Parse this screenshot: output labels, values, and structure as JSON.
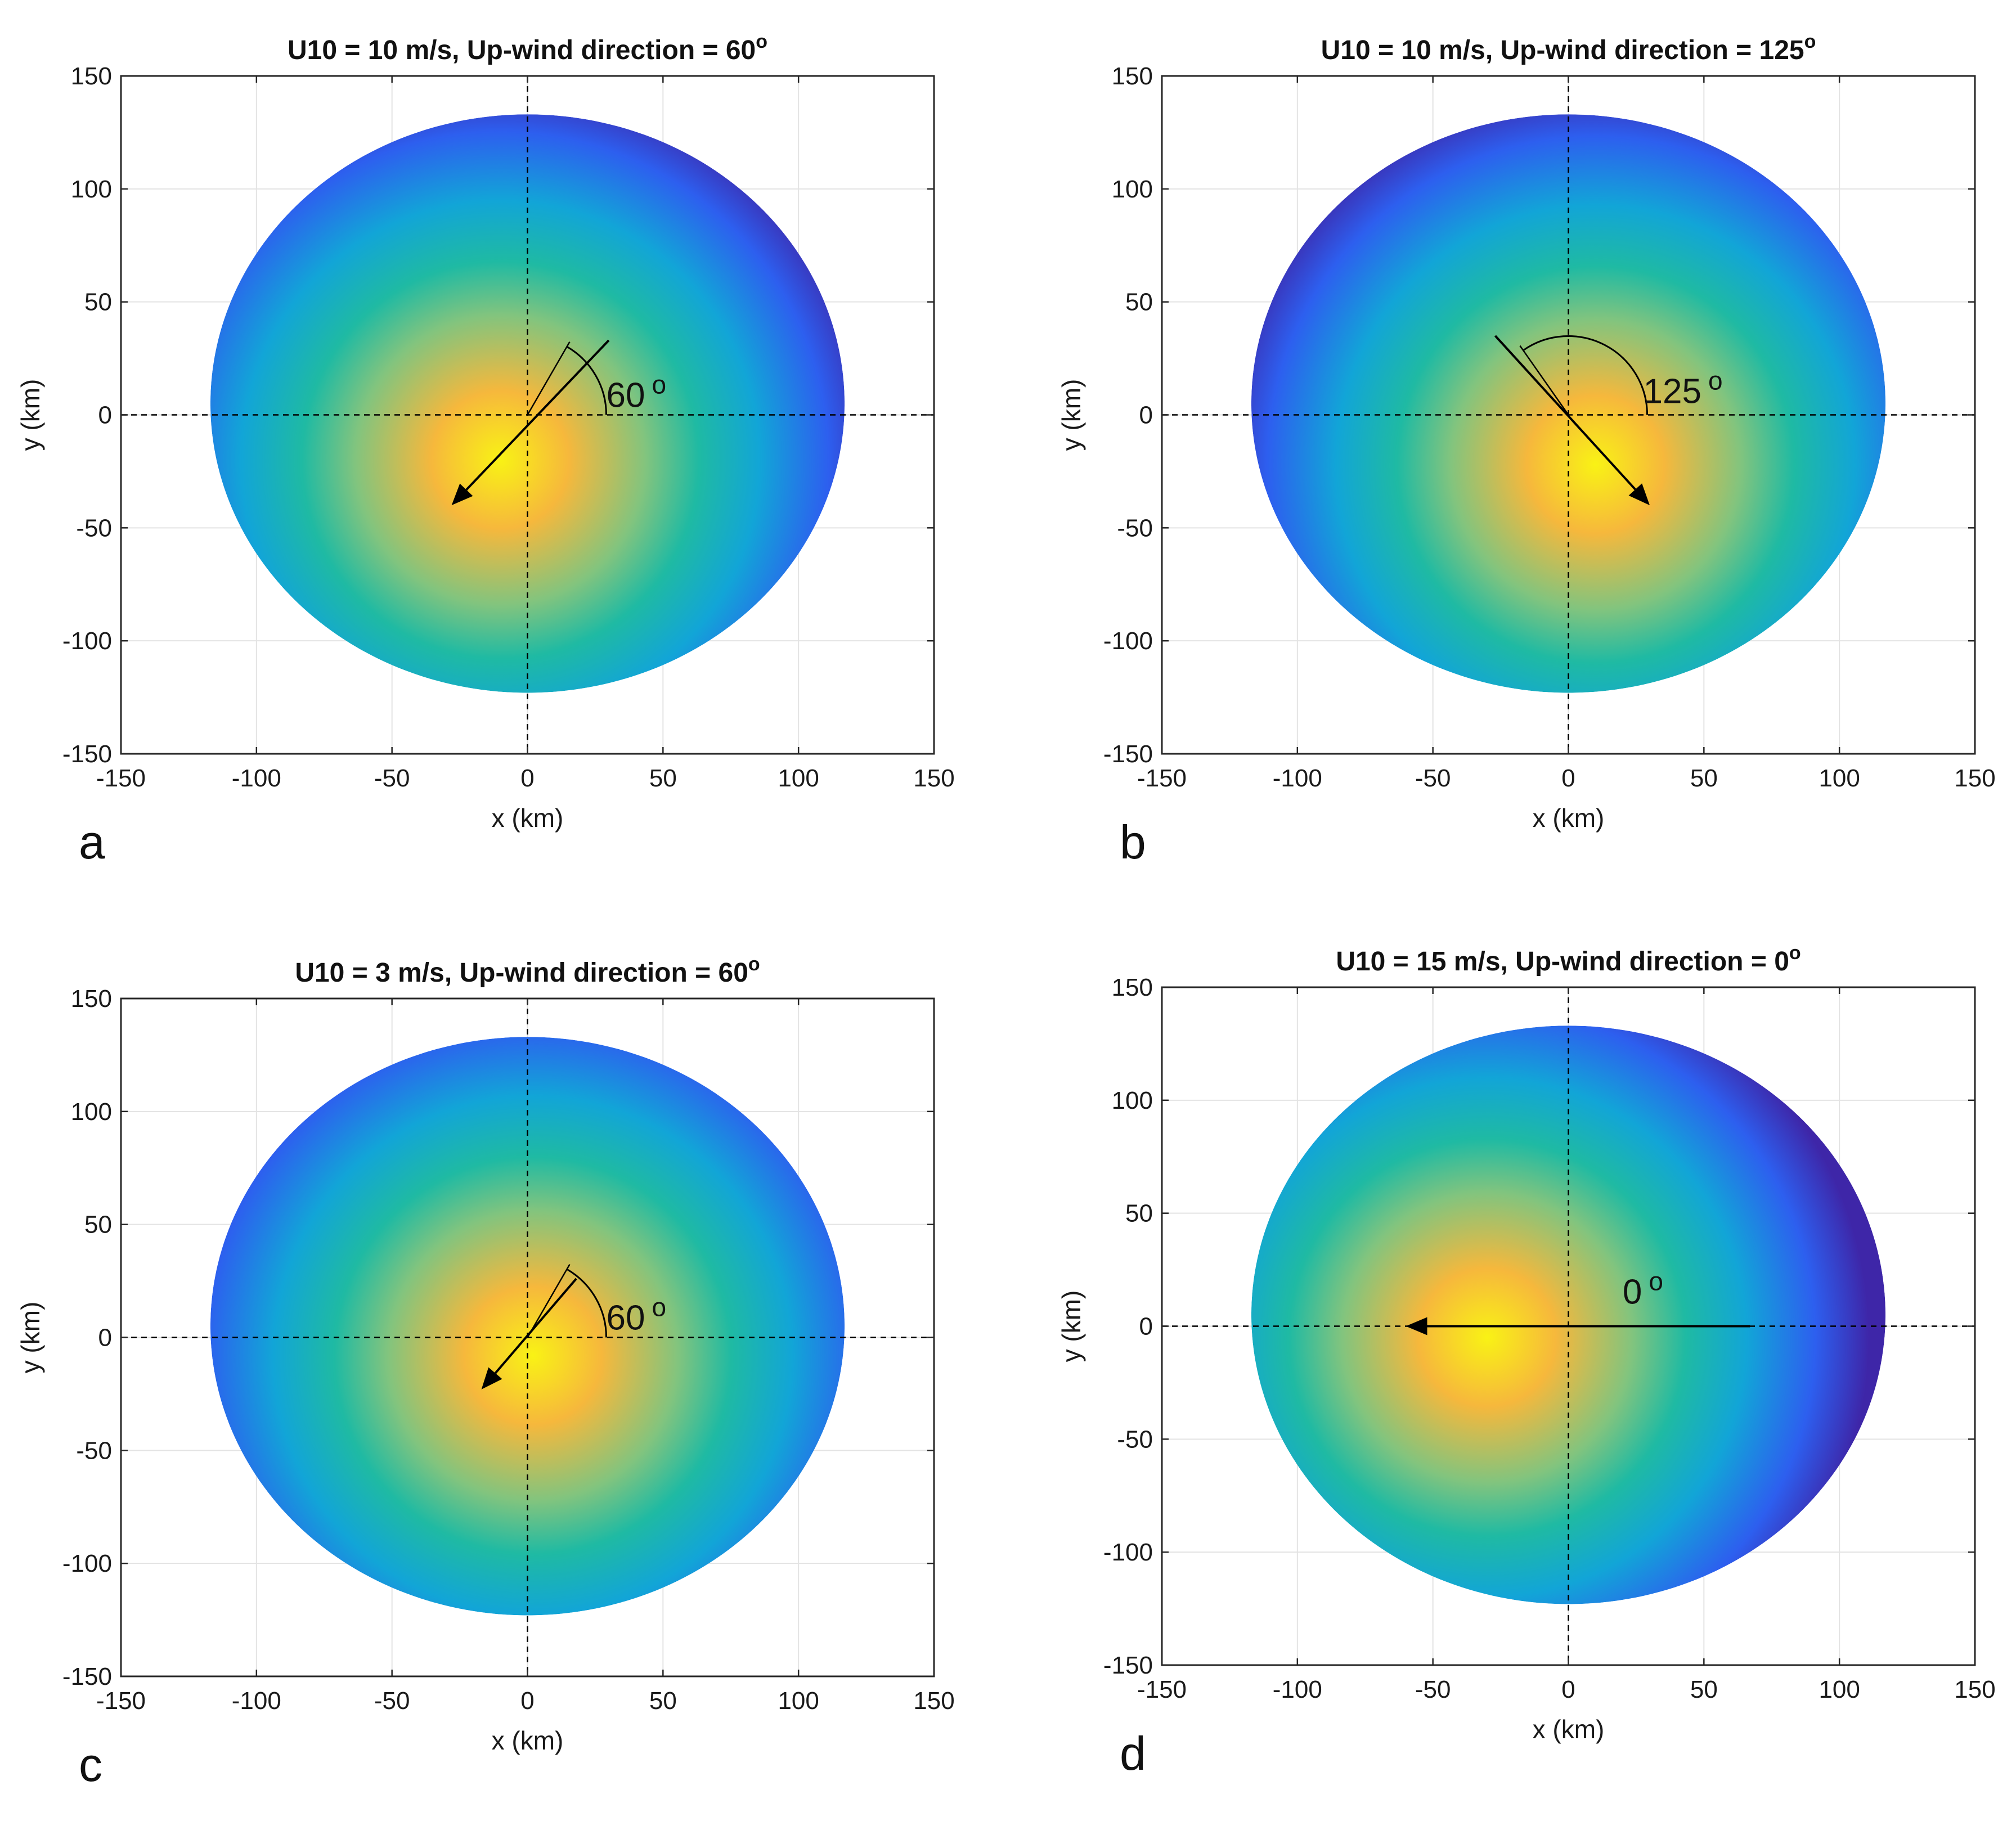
{
  "figure": {
    "colormap": [
      "#3e26a8",
      "#2d5fef",
      "#12a5d7",
      "#1fbaa3",
      "#82c47e",
      "#f6b83c",
      "#f9f215"
    ]
  },
  "chart_data": [
    {
      "type": "heatmap",
      "panel_label": "a",
      "title": "U10 = 10 m/s,  Up-wind direction = 60",
      "title_degree": "o",
      "xlabel": "x (km)",
      "ylabel": "y (km)",
      "xlim": [
        -150,
        150
      ],
      "ylim": [
        -150,
        150
      ],
      "xticks": [
        -150,
        -100,
        -50,
        0,
        50,
        100,
        150
      ],
      "yticks": [
        -150,
        -100,
        -50,
        0,
        50,
        100,
        150
      ],
      "grid": true,
      "disk": {
        "center": [
          0,
          5
        ],
        "radius_x": 117,
        "radius_y": 128
      },
      "peak": [
        -10,
        -20
      ],
      "inner_radius_x": 62,
      "inner_radius_y": 75,
      "wind_angle_deg": 60,
      "arrow": {
        "from": [
          30,
          33
        ],
        "to": [
          -28,
          -40
        ]
      },
      "annotation": "60",
      "annotation_degree": "o"
    },
    {
      "type": "heatmap",
      "panel_label": "b",
      "title": "U10 = 10 m/s,  Up-wind direction = 125",
      "title_degree": "o",
      "xlabel": "x (km)",
      "ylabel": "y (km)",
      "xlim": [
        -150,
        150
      ],
      "ylim": [
        -150,
        150
      ],
      "xticks": [
        -150,
        -100,
        -50,
        0,
        50,
        100,
        150
      ],
      "yticks": [
        -150,
        -100,
        -50,
        0,
        50,
        100,
        150
      ],
      "grid": true,
      "disk": {
        "center": [
          0,
          5
        ],
        "radius_x": 117,
        "radius_y": 128
      },
      "peak": [
        10,
        -22
      ],
      "inner_radius_x": 72,
      "inner_radius_y": 82,
      "wind_angle_deg": 125,
      "arrow": {
        "from": [
          -27,
          35
        ],
        "to": [
          30,
          -40
        ]
      },
      "annotation": "125",
      "annotation_degree": "o"
    },
    {
      "type": "heatmap",
      "panel_label": "c",
      "title": "U10 = 3 m/s,  Up-wind direction = 60",
      "title_degree": "o",
      "xlabel": "x (km)",
      "ylabel": "y (km)",
      "xlim": [
        -150,
        150
      ],
      "ylim": [
        -150,
        150
      ],
      "xticks": [
        -150,
        -100,
        -50,
        0,
        50,
        100,
        150
      ],
      "yticks": [
        -150,
        -100,
        -50,
        0,
        50,
        100,
        150
      ],
      "grid": true,
      "disk": {
        "center": [
          0,
          5
        ],
        "radius_x": 117,
        "radius_y": 128
      },
      "peak": [
        2,
        -8
      ],
      "inner_radius_x": 55,
      "inner_radius_y": 65,
      "wind_angle_deg": 60,
      "arrow": {
        "from": [
          18,
          26
        ],
        "to": [
          -17,
          -23
        ]
      },
      "annotation": "60",
      "annotation_degree": "o"
    },
    {
      "type": "heatmap",
      "panel_label": "d",
      "title": "U10 = 15 m/s,  Up-wind direction = 0",
      "title_degree": "o",
      "xlabel": "x (km)",
      "ylabel": "y (km)",
      "xlim": [
        -150,
        150
      ],
      "ylim": [
        -150,
        150
      ],
      "xticks": [
        -150,
        -100,
        -50,
        0,
        50,
        100,
        150
      ],
      "yticks": [
        -150,
        -100,
        -50,
        0,
        50,
        100,
        150
      ],
      "grid": true,
      "disk": {
        "center": [
          0,
          5
        ],
        "radius_x": 117,
        "radius_y": 128
      },
      "peak": [
        -30,
        -5
      ],
      "inner_radius_x": 70,
      "inner_radius_y": 85,
      "wind_angle_deg": 0,
      "arrow": {
        "from": [
          67,
          0
        ],
        "to": [
          -60,
          0
        ]
      },
      "annotation": "0",
      "annotation_degree": "o"
    }
  ]
}
